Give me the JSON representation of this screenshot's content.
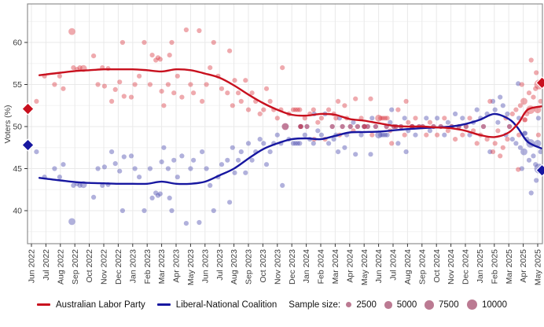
{
  "legend": {
    "alp_label": "Australian Labor Party",
    "lnp_label": "Liberal-National Coalition",
    "sample_label": "Sample size:",
    "sample_sizes": [
      2500,
      5000,
      7500,
      10000
    ]
  },
  "axes": {
    "ylabel": "Voters (%)",
    "y_ticks": [
      40,
      45,
      50,
      55,
      60
    ],
    "ylim": [
      36.1,
      64.6
    ],
    "months": [
      "Jun 2022",
      "Jul 2022",
      "Aug 2022",
      "Sep 2022",
      "Oct 2022",
      "Nov 2022",
      "Dec 2022",
      "Jan 2023",
      "Feb 2023",
      "Mar 2023",
      "Apr 2023",
      "May 2023",
      "Jun 2023",
      "Jul 2023",
      "Aug 2023",
      "Sep 2023",
      "Oct 2023",
      "Nov 2023",
      "Dec 2023",
      "Jan 2024",
      "Feb 2024",
      "Mar 2024",
      "Apr 2024",
      "May 2024",
      "Jun 2024",
      "Jul 2024",
      "Aug 2024",
      "Sep 2024",
      "Oct 2024",
      "Nov 2024",
      "Dec 2024",
      "Jan 2025",
      "Feb 2025",
      "Mar 2025",
      "Apr 2025",
      "May 2025"
    ]
  },
  "colors": {
    "alp_line": "#c8101e",
    "lnp_line": "#1717a0",
    "alp_point": "#d8353f",
    "lnp_point": "#5252b2",
    "point_opacity": 0.42,
    "grid_major": "#e9e9e9",
    "grid_minor": "#f4f4f4",
    "panel_border": "#8f8f8f",
    "axis_text": "#3d3d3d",
    "sample_dot": "#bb7a92"
  },
  "chart_data": {
    "type": "scatter",
    "title": "",
    "xlabel": "",
    "ylabel": "Voters (%)",
    "x_categories_note": "month index 0 = Jun 2022, 35 = May 2025",
    "legend_position": "bottom",
    "grid": true,
    "series": [
      {
        "name": "Australian Labor Party",
        "color": "#c8101e",
        "trend": [
          [
            0.55,
            56.1
          ],
          [
            1,
            56.2
          ],
          [
            2,
            56.4
          ],
          [
            3,
            56.6
          ],
          [
            4,
            56.7
          ],
          [
            5,
            56.8
          ],
          [
            6,
            56.8
          ],
          [
            7,
            56.8
          ],
          [
            8,
            56.7
          ],
          [
            9,
            56.55
          ],
          [
            10,
            56.8
          ],
          [
            11,
            56.7
          ],
          [
            12,
            56.3
          ],
          [
            13,
            55.8
          ],
          [
            14,
            54.9
          ],
          [
            15,
            53.8
          ],
          [
            16,
            52.8
          ],
          [
            17,
            52.0
          ],
          [
            18,
            51.4
          ],
          [
            19,
            51.3
          ],
          [
            20,
            51.5
          ],
          [
            21,
            51.4
          ],
          [
            22,
            50.9
          ],
          [
            23,
            50.7
          ],
          [
            24,
            50.4
          ],
          [
            25,
            50.1
          ],
          [
            26,
            50.0
          ],
          [
            27,
            50.0
          ],
          [
            28,
            49.9
          ],
          [
            29,
            49.8
          ],
          [
            30,
            49.5
          ],
          [
            31,
            49.0
          ],
          [
            32,
            48.75
          ],
          [
            33,
            49.3
          ],
          [
            33.7,
            50.5
          ],
          [
            34.3,
            52.0
          ],
          [
            35.25,
            52.4
          ]
        ]
      },
      {
        "name": "Liberal-National Coalition",
        "color": "#1717a0",
        "trend": [
          [
            0.55,
            43.9
          ],
          [
            1,
            43.8
          ],
          [
            2,
            43.6
          ],
          [
            3,
            43.4
          ],
          [
            4,
            43.3
          ],
          [
            5,
            43.25
          ],
          [
            6,
            43.2
          ],
          [
            7,
            43.2
          ],
          [
            8,
            43.2
          ],
          [
            9,
            43.45
          ],
          [
            10,
            43.2
          ],
          [
            11,
            43.2
          ],
          [
            12,
            43.45
          ],
          [
            13,
            44.2
          ],
          [
            14,
            45.0
          ],
          [
            15,
            46.2
          ],
          [
            16,
            47.3
          ],
          [
            17,
            48.0
          ],
          [
            18,
            48.5
          ],
          [
            19,
            48.6
          ],
          [
            20,
            48.5
          ],
          [
            21,
            48.9
          ],
          [
            22,
            49.3
          ],
          [
            23,
            49.35
          ],
          [
            24,
            49.4
          ],
          [
            25,
            49.55
          ],
          [
            26,
            49.7
          ],
          [
            27,
            49.8
          ],
          [
            28,
            49.9
          ],
          [
            29,
            50.0
          ],
          [
            30,
            50.3
          ],
          [
            31,
            50.8
          ],
          [
            32,
            51.5
          ],
          [
            33,
            50.9
          ],
          [
            33.6,
            49.9
          ],
          [
            34.3,
            48.2
          ],
          [
            35.25,
            47.4
          ]
        ]
      }
    ],
    "polls_note": "[month_index, ALP_2pp_%, sample_size]; LNP point = 100 - ALP",
    "polls": [
      [
        0.35,
        53,
        2500
      ],
      [
        0.9,
        56,
        2500
      ],
      [
        1.6,
        55,
        2500
      ],
      [
        1.95,
        56,
        2500
      ],
      [
        2.2,
        54.5,
        2500
      ],
      [
        2.8,
        61.3,
        5000
      ],
      [
        2.9,
        57,
        2500
      ],
      [
        3.15,
        56.8,
        2500
      ],
      [
        3.35,
        57,
        2500
      ],
      [
        3.6,
        56.9,
        5000
      ],
      [
        4.3,
        58.4,
        2500
      ],
      [
        4.6,
        55,
        2500
      ],
      [
        4.9,
        57,
        2500
      ],
      [
        5.05,
        54.8,
        2500
      ],
      [
        5.3,
        56.9,
        2500
      ],
      [
        5.55,
        53,
        2500
      ],
      [
        5.8,
        54.4,
        2500
      ],
      [
        6.1,
        55.3,
        2500
      ],
      [
        6.3,
        60,
        2500
      ],
      [
        6.4,
        53.6,
        2500
      ],
      [
        6.9,
        53.5,
        2500
      ],
      [
        7.15,
        55,
        2500
      ],
      [
        7.45,
        56,
        2500
      ],
      [
        7.8,
        60,
        2500
      ],
      [
        8.2,
        55,
        2500
      ],
      [
        8.35,
        58.5,
        2500
      ],
      [
        8.6,
        57.9,
        2500
      ],
      [
        8.75,
        58.2,
        2500
      ],
      [
        8.9,
        58,
        2500
      ],
      [
        9.0,
        54.2,
        2500
      ],
      [
        9.15,
        52.5,
        2500
      ],
      [
        9.45,
        55,
        2500
      ],
      [
        9.55,
        58.5,
        2500
      ],
      [
        9.7,
        60,
        2500
      ],
      [
        9.85,
        54,
        2500
      ],
      [
        10.1,
        56,
        2500
      ],
      [
        10.4,
        53.5,
        2500
      ],
      [
        10.7,
        61.5,
        2500
      ],
      [
        11.0,
        55,
        2500
      ],
      [
        11.2,
        54,
        2500
      ],
      [
        11.6,
        61.4,
        2500
      ],
      [
        11.8,
        53,
        2500
      ],
      [
        12.1,
        55,
        2500
      ],
      [
        12.35,
        57,
        2500
      ],
      [
        12.6,
        60,
        2500
      ],
      [
        12.9,
        56,
        2500
      ],
      [
        13.15,
        54.5,
        2500
      ],
      [
        13.55,
        54,
        2500
      ],
      [
        13.7,
        59,
        2500
      ],
      [
        13.9,
        52.5,
        2500
      ],
      [
        14.05,
        55.5,
        2500
      ],
      [
        14.3,
        54,
        2500
      ],
      [
        14.5,
        53,
        2500
      ],
      [
        14.8,
        55.5,
        2500
      ],
      [
        15.0,
        52,
        2500
      ],
      [
        15.25,
        54,
        2500
      ],
      [
        15.5,
        53,
        2500
      ],
      [
        15.8,
        51.5,
        2500
      ],
      [
        16.05,
        52,
        2500
      ],
      [
        16.25,
        54.5,
        2500
      ],
      [
        16.5,
        53,
        2500
      ],
      [
        16.75,
        52,
        2500
      ],
      [
        17.0,
        51,
        2500
      ],
      [
        17.25,
        52,
        2500
      ],
      [
        17.35,
        57,
        2500
      ],
      [
        17.55,
        50,
        5000
      ],
      [
        17.8,
        51.5,
        2500
      ],
      [
        18.1,
        52,
        2500
      ],
      [
        18.25,
        52,
        2500
      ],
      [
        18.4,
        52,
        2500
      ],
      [
        18.55,
        52,
        2500
      ],
      [
        18.6,
        50,
        2500
      ],
      [
        18.63,
        50,
        2500
      ],
      [
        18.9,
        51,
        2500
      ],
      [
        19.05,
        50,
        2500
      ],
      [
        19.25,
        51.5,
        2500
      ],
      [
        19.5,
        52,
        2500
      ],
      [
        19.55,
        48.5,
        2500
      ],
      [
        19.8,
        50.5,
        2500
      ],
      [
        20.05,
        51,
        2500
      ],
      [
        20.3,
        48.5,
        2500
      ],
      [
        20.55,
        52,
        2500
      ],
      [
        20.8,
        50,
        2500
      ],
      [
        20.9,
        51.5,
        2500
      ],
      [
        21.05,
        51,
        2500
      ],
      [
        21.2,
        53,
        2500
      ],
      [
        21.3,
        49,
        2500
      ],
      [
        21.5,
        50,
        2500
      ],
      [
        21.65,
        52.5,
        2500
      ],
      [
        21.8,
        51,
        2500
      ],
      [
        22.05,
        50,
        2500
      ],
      [
        22.25,
        49.5,
        2500
      ],
      [
        22.4,
        53.3,
        2500
      ],
      [
        22.55,
        50,
        2500
      ],
      [
        22.8,
        51,
        2500
      ],
      [
        23.0,
        50,
        2500
      ],
      [
        23.03,
        50,
        2500
      ],
      [
        23.25,
        50,
        2500
      ],
      [
        23.45,
        53.3,
        2500
      ],
      [
        23.55,
        49,
        2500
      ],
      [
        23.8,
        50,
        2500
      ],
      [
        24.0,
        51,
        5000
      ],
      [
        24.15,
        51,
        2500
      ],
      [
        24.3,
        51,
        2500
      ],
      [
        24.45,
        51,
        2500
      ],
      [
        24.6,
        51,
        2500
      ],
      [
        24.55,
        50,
        2500
      ],
      [
        24.8,
        49.5,
        2500
      ],
      [
        24.9,
        48,
        2500
      ],
      [
        25.05,
        50,
        2500
      ],
      [
        25.2,
        50,
        2500
      ],
      [
        25.35,
        52,
        2500
      ],
      [
        25.55,
        50,
        2500
      ],
      [
        25.8,
        49,
        2500
      ],
      [
        25.9,
        53,
        2500
      ],
      [
        26.05,
        50.5,
        2500
      ],
      [
        26.3,
        50,
        2500
      ],
      [
        26.33,
        50,
        2500
      ],
      [
        26.55,
        51,
        2500
      ],
      [
        26.8,
        50,
        2500
      ],
      [
        27.05,
        50,
        2500
      ],
      [
        27.3,
        49,
        2500
      ],
      [
        27.55,
        50.5,
        2500
      ],
      [
        27.8,
        50,
        2500
      ],
      [
        28.05,
        49,
        2500
      ],
      [
        28.3,
        50,
        2500
      ],
      [
        28.55,
        51,
        2500
      ],
      [
        28.8,
        49.5,
        2500
      ],
      [
        29.05,
        50,
        2500
      ],
      [
        29.3,
        48.5,
        2500
      ],
      [
        29.55,
        50,
        2500
      ],
      [
        29.8,
        49,
        2500
      ],
      [
        30.05,
        50,
        2500
      ],
      [
        30.3,
        51,
        2500
      ],
      [
        30.55,
        49.5,
        2500
      ],
      [
        30.8,
        48,
        2500
      ],
      [
        31.05,
        49,
        2500
      ],
      [
        31.25,
        50,
        2500
      ],
      [
        31.5,
        48.5,
        2500
      ],
      [
        31.7,
        53,
        2500
      ],
      [
        31.9,
        47,
        2500
      ],
      [
        32.05,
        48,
        2500
      ],
      [
        32.25,
        49.5,
        2500
      ],
      [
        32.4,
        46.5,
        2500
      ],
      [
        32.6,
        47.5,
        2500
      ],
      [
        32.8,
        51,
        2500
      ],
      [
        32.9,
        48.5,
        2500
      ],
      [
        33.05,
        50,
        2500
      ],
      [
        33.25,
        51.5,
        2500
      ],
      [
        33.5,
        52,
        2500
      ],
      [
        33.65,
        44.9,
        2500
      ],
      [
        33.7,
        49,
        2500
      ],
      [
        33.8,
        52.5,
        2500
      ],
      [
        33.9,
        55,
        2500
      ],
      [
        34.05,
        53,
        5000
      ],
      [
        34.1,
        50.8,
        2500
      ],
      [
        34.13,
        50.8,
        2500
      ],
      [
        34.25,
        51.5,
        2500
      ],
      [
        34.4,
        54,
        2500
      ],
      [
        34.5,
        52,
        7500
      ],
      [
        34.55,
        57.9,
        2500
      ],
      [
        34.7,
        53.5,
        2500
      ],
      [
        34.85,
        54.5,
        2500
      ],
      [
        34.9,
        56.4,
        2500
      ],
      [
        35.0,
        52,
        5000
      ],
      [
        35.05,
        49,
        2500
      ],
      [
        35.1,
        55,
        10000
      ],
      [
        35.2,
        53,
        2500
      ]
    ],
    "edge_markers": {
      "left": {
        "alp": 52.1,
        "lnp": 47.8
      },
      "right": {
        "alp": 55.2,
        "lnp": 44.8
      }
    }
  }
}
